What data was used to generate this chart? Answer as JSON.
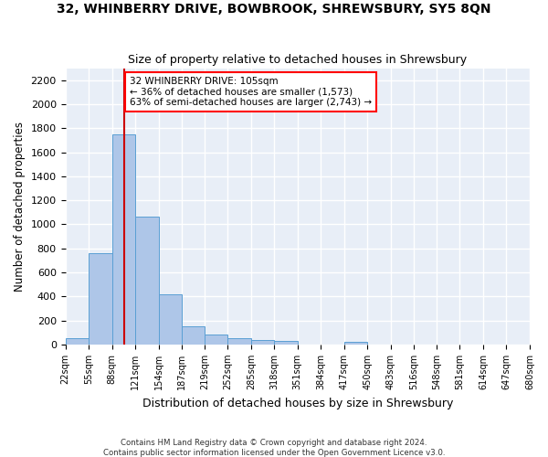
{
  "title": "32, WHINBERRY DRIVE, BOWBROOK, SHREWSBURY, SY5 8QN",
  "subtitle": "Size of property relative to detached houses in Shrewsbury",
  "xlabel": "Distribution of detached houses by size in Shrewsbury",
  "ylabel": "Number of detached properties",
  "bar_color": "#aec6e8",
  "bar_edge_color": "#5a9fd4",
  "background_color": "#e8eef7",
  "grid_color": "#ffffff",
  "annotation_text": "32 WHINBERRY DRIVE: 105sqm\n← 36% of detached houses are smaller (1,573)\n63% of semi-detached houses are larger (2,743) →",
  "vline_x": 105,
  "vline_color": "#cc0000",
  "bin_edges": [
    22,
    55,
    88,
    121,
    154,
    187,
    219,
    252,
    285,
    318,
    351,
    384,
    417,
    450,
    483,
    516,
    548,
    581,
    614,
    647,
    680
  ],
  "bar_heights": [
    55,
    760,
    1750,
    1065,
    415,
    155,
    85,
    50,
    40,
    30,
    0,
    0,
    20,
    0,
    0,
    0,
    0,
    0,
    0,
    0
  ],
  "ylim": [
    0,
    2300
  ],
  "yticks": [
    0,
    200,
    400,
    600,
    800,
    1000,
    1200,
    1400,
    1600,
    1800,
    2000,
    2200
  ],
  "footnote": "Contains HM Land Registry data © Crown copyright and database right 2024.\nContains public sector information licensed under the Open Government Licence v3.0.",
  "tick_labels": [
    "22sqm",
    "55sqm",
    "88sqm",
    "121sqm",
    "154sqm",
    "187sqm",
    "219sqm",
    "252sqm",
    "285sqm",
    "318sqm",
    "351sqm",
    "384sqm",
    "417sqm",
    "450sqm",
    "483sqm",
    "516sqm",
    "548sqm",
    "581sqm",
    "614sqm",
    "647sqm",
    "680sqm"
  ]
}
